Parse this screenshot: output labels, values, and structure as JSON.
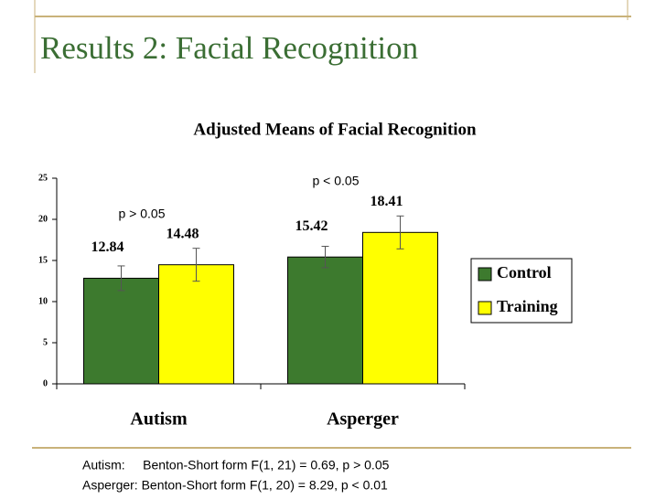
{
  "slide": {
    "title": "Results 2: Facial Recognition",
    "footnotes": [
      "Autism:     Benton-Short form F(1, 21) = 0.69, p > 0.05",
      "Asperger: Benton-Short form F(1, 20) = 8.29, p < 0.01"
    ]
  },
  "chart_data": {
    "type": "bar",
    "title": "Adjusted Means of Facial Recognition",
    "categories": [
      "Autism",
      "Asperger"
    ],
    "series": [
      {
        "name": "Control",
        "color": "#3d7a2e",
        "values": [
          12.84,
          15.42
        ],
        "errors": [
          1.5,
          1.3
        ]
      },
      {
        "name": "Training",
        "color": "#ffff00",
        "values": [
          14.48,
          18.41
        ],
        "errors": [
          2.0,
          2.0
        ]
      }
    ],
    "annotations": [
      "p > 0.05",
      "p < 0.05"
    ],
    "ylim": [
      0,
      25
    ],
    "yticks": [
      0,
      5,
      10,
      15,
      20,
      25
    ],
    "grid": false,
    "legend": "right"
  }
}
